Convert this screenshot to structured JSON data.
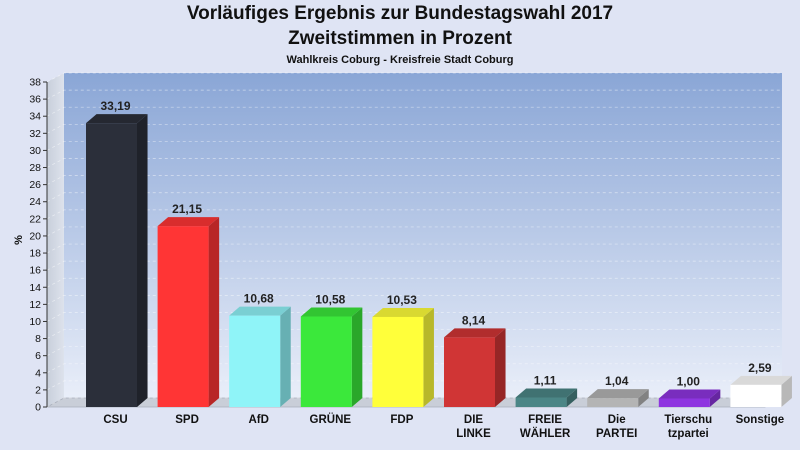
{
  "chart_data": {
    "type": "bar",
    "title": "Vorläufiges Ergebnis zur Bundestagswahl 2017",
    "title_line2": "Zweitstimmen in Prozent",
    "subtitle": "Wahlkreis Coburg - Kreisfreie Stadt Coburg",
    "xlabel": "",
    "ylabel": "%",
    "ylim": [
      0,
      38
    ],
    "yticks": [
      "0",
      "2",
      "4",
      "6",
      "8",
      "10",
      "12",
      "14",
      "16",
      "18",
      "20",
      "22",
      "24",
      "26",
      "28",
      "30",
      "32",
      "34",
      "36",
      "38"
    ],
    "grid": true,
    "categories": [
      [
        "CSU"
      ],
      [
        "SPD"
      ],
      [
        "AfD"
      ],
      [
        "GRÜNE"
      ],
      [
        "FDP"
      ],
      [
        "DIE",
        "LINKE"
      ],
      [
        "FREIE",
        "WÄHLER"
      ],
      [
        "Die",
        "PARTEI"
      ],
      [
        "Tierschu",
        "tzpartei"
      ],
      [
        "Sonstige"
      ]
    ],
    "values": [
      33.19,
      21.15,
      10.68,
      10.58,
      10.53,
      8.14,
      1.11,
      1.04,
      1.0,
      2.59
    ],
    "value_labels": [
      "33,19",
      "21,15",
      "10,68",
      "10,58",
      "10,53",
      "8,14",
      "1,11",
      "1,04",
      "1,00",
      "2,59"
    ],
    "colors": [
      "#2b2f3a",
      "#ff3535",
      "#8ff4f8",
      "#3be83b",
      "#ffff3a",
      "#d03535",
      "#4b8686",
      "#b4b4b4",
      "#8e35e0",
      "#ffffff"
    ]
  }
}
